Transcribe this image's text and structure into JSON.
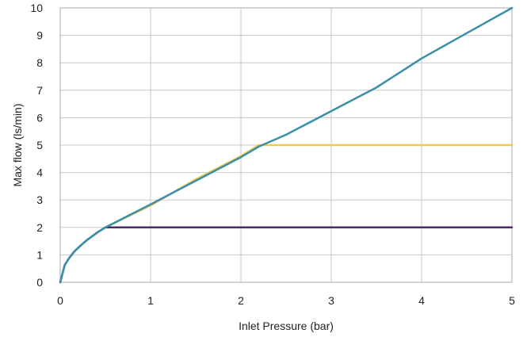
{
  "chart_data": {
    "type": "line",
    "title": "",
    "xlabel": "Inlet Pressure (bar)",
    "ylabel": "Max flow (ls/min)",
    "xlim": [
      0,
      5
    ],
    "ylim": [
      0,
      10
    ],
    "xticks": [
      0,
      1,
      2,
      3,
      4,
      5
    ],
    "yticks": [
      0,
      1,
      2,
      3,
      4,
      5,
      6,
      7,
      8,
      9,
      10
    ],
    "grid": true,
    "legend": "none",
    "series": [
      {
        "color": "#F2C744",
        "x": [
          0,
          0.05,
          0.1,
          0.15,
          0.2,
          0.25,
          0.3,
          0.35,
          0.4,
          0.45,
          0.5,
          1.0,
          1.5,
          2.0,
          2.2,
          2.5,
          3.0,
          3.5,
          4.0,
          4.5,
          5.0
        ],
        "y": [
          0,
          0.63,
          0.89,
          1.1,
          1.26,
          1.41,
          1.55,
          1.67,
          1.79,
          1.9,
          2.0,
          2.8,
          3.75,
          4.6,
          5.0,
          5.0,
          5.0,
          5.0,
          5.0,
          5.0,
          5.0
        ]
      },
      {
        "color": "#4B2A6B",
        "x": [
          0,
          0.05,
          0.1,
          0.15,
          0.2,
          0.25,
          0.3,
          0.35,
          0.4,
          0.45,
          0.5,
          1.0,
          2.0,
          3.0,
          4.0,
          5.0
        ],
        "y": [
          0,
          0.63,
          0.89,
          1.1,
          1.26,
          1.41,
          1.55,
          1.67,
          1.79,
          1.9,
          2.0,
          2.0,
          2.0,
          2.0,
          2.0,
          2.0
        ]
      },
      {
        "color": "#3A8FAA",
        "x": [
          0,
          0.05,
          0.1,
          0.15,
          0.2,
          0.25,
          0.3,
          0.35,
          0.4,
          0.45,
          0.5,
          1.0,
          1.5,
          2.0,
          2.2,
          2.5,
          3.0,
          3.5,
          4.0,
          4.5,
          5.0
        ],
        "y": [
          0,
          0.63,
          0.89,
          1.1,
          1.26,
          1.41,
          1.55,
          1.67,
          1.79,
          1.9,
          2.0,
          2.84,
          3.7,
          4.56,
          4.95,
          5.38,
          6.24,
          7.1,
          8.16,
          9.08,
          10.0
        ]
      }
    ]
  }
}
